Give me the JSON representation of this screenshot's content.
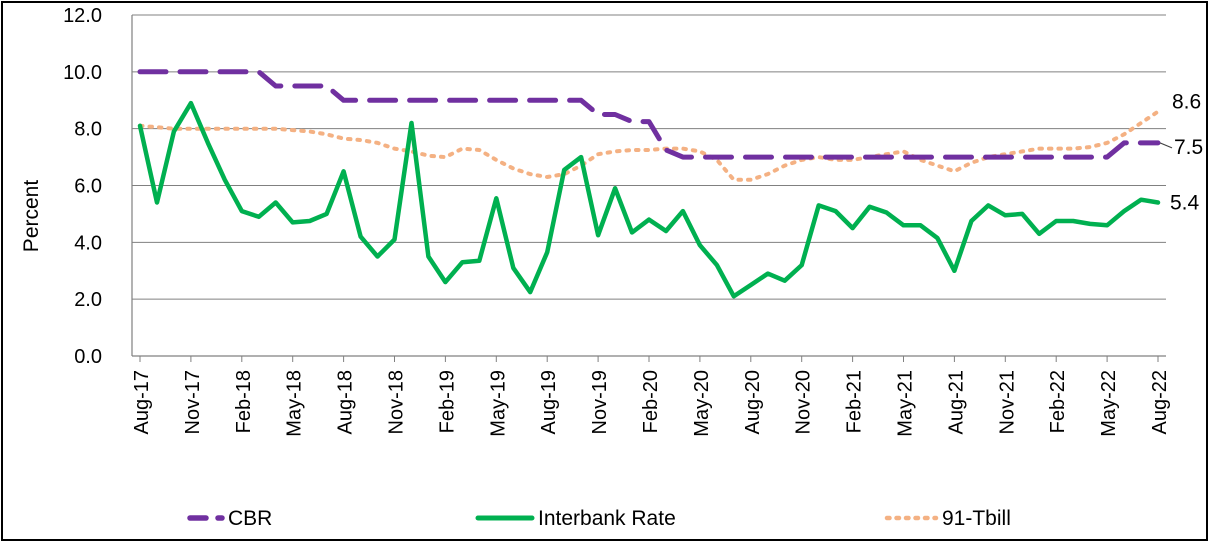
{
  "chart_data": {
    "type": "line",
    "title": "",
    "xlabel": "",
    "ylabel": "Percent",
    "ylim": [
      0,
      12
    ],
    "yticks": [
      "0.0",
      "2.0",
      "4.0",
      "6.0",
      "8.0",
      "10.0",
      "12.0"
    ],
    "grid": true,
    "legend_position": "bottom",
    "x_tick_labels": [
      "Aug-17",
      "Nov-17",
      "Feb-18",
      "May-18",
      "Aug-18",
      "Nov-18",
      "Feb-19",
      "May-19",
      "Aug-19",
      "Nov-19",
      "Feb-20",
      "May-20",
      "Aug-20",
      "Nov-20",
      "Feb-21",
      "May-21",
      "Aug-21",
      "Nov-21",
      "Feb-22",
      "May-22",
      "Aug-22"
    ],
    "x": [
      "Aug-17",
      "Sep-17",
      "Oct-17",
      "Nov-17",
      "Dec-17",
      "Jan-18",
      "Feb-18",
      "Mar-18",
      "Apr-18",
      "May-18",
      "Jun-18",
      "Jul-18",
      "Aug-18",
      "Sep-18",
      "Oct-18",
      "Nov-18",
      "Dec-18",
      "Jan-19",
      "Feb-19",
      "Mar-19",
      "Apr-19",
      "May-19",
      "Jun-19",
      "Jul-19",
      "Aug-19",
      "Sep-19",
      "Oct-19",
      "Nov-19",
      "Dec-19",
      "Jan-20",
      "Feb-20",
      "Mar-20",
      "Apr-20",
      "May-20",
      "Jun-20",
      "Jul-20",
      "Aug-20",
      "Sep-20",
      "Oct-20",
      "Nov-20",
      "Dec-20",
      "Jan-21",
      "Feb-21",
      "Mar-21",
      "Apr-21",
      "May-21",
      "Jun-21",
      "Jul-21",
      "Aug-21",
      "Sep-21",
      "Oct-21",
      "Nov-21",
      "Dec-21",
      "Jan-22",
      "Feb-22",
      "Mar-22",
      "Apr-22",
      "May-22",
      "Jun-22",
      "Jul-22",
      "Aug-22"
    ],
    "series": [
      {
        "name": "CBR",
        "color": "#7030A0",
        "style": "dashed",
        "values": [
          10,
          10,
          10,
          10,
          10,
          10,
          10,
          10,
          9.5,
          9.5,
          9.5,
          9.5,
          9,
          9,
          9,
          9,
          9,
          9,
          9,
          9,
          9,
          9,
          9,
          9,
          9,
          9,
          9,
          8.5,
          8.5,
          8.25,
          8.25,
          7.25,
          7,
          7,
          7,
          7,
          7,
          7,
          7,
          7,
          7,
          7,
          7,
          7,
          7,
          7,
          7,
          7,
          7,
          7,
          7,
          7,
          7,
          7,
          7,
          7,
          7,
          7,
          7.5,
          7.5,
          7.5
        ]
      },
      {
        "name": "Interbank Rate",
        "color": "#00B050",
        "style": "solid",
        "values": [
          8.1,
          5.4,
          7.9,
          8.9,
          7.5,
          6.2,
          5.1,
          4.9,
          5.4,
          4.7,
          4.75,
          5.0,
          6.5,
          4.2,
          3.5,
          4.1,
          8.2,
          3.5,
          2.6,
          3.3,
          3.35,
          5.55,
          3.1,
          2.25,
          3.65,
          6.55,
          7.0,
          4.25,
          5.9,
          4.35,
          4.8,
          4.4,
          5.1,
          3.9,
          3.2,
          2.1,
          2.5,
          2.9,
          2.65,
          3.2,
          5.3,
          5.1,
          4.5,
          5.25,
          5.05,
          4.6,
          4.6,
          4.15,
          3.0,
          4.75,
          5.3,
          4.95,
          5.0,
          4.3,
          4.75,
          4.75,
          4.65,
          4.6,
          5.1,
          5.5,
          5.4
        ]
      },
      {
        "name": "91-Tbill",
        "color": "#F4B183",
        "style": "dotted",
        "values": [
          8.1,
          8.05,
          8.0,
          8.0,
          8.0,
          8.0,
          8.0,
          8.0,
          8.0,
          7.95,
          7.9,
          7.8,
          7.65,
          7.6,
          7.5,
          7.3,
          7.2,
          7.05,
          7.0,
          7.3,
          7.25,
          6.9,
          6.6,
          6.4,
          6.3,
          6.4,
          6.7,
          7.1,
          7.2,
          7.25,
          7.25,
          7.3,
          7.3,
          7.2,
          6.9,
          6.2,
          6.2,
          6.4,
          6.7,
          6.9,
          7.0,
          6.9,
          6.9,
          7.0,
          7.1,
          7.2,
          6.9,
          6.7,
          6.5,
          6.8,
          7.0,
          7.1,
          7.2,
          7.3,
          7.3,
          7.3,
          7.35,
          7.5,
          7.8,
          8.2,
          8.6
        ]
      }
    ],
    "annotations": [
      {
        "text": "8.6",
        "series": "91-Tbill"
      },
      {
        "text": "7.5",
        "series": "CBR"
      },
      {
        "text": "5.4",
        "series": "Interbank Rate"
      }
    ]
  }
}
